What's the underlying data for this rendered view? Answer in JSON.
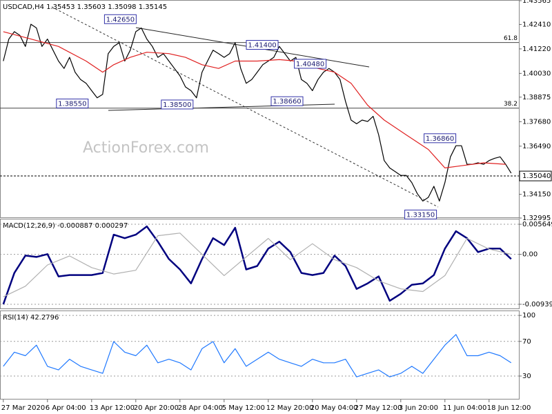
{
  "chart_data": [
    {
      "type": "line",
      "title": "USDCAD,H4 1.35453 1.35603 1.35098 1.35145",
      "watermark": "ActionForex.com",
      "xlim": [
        -0.6,
        93.4
      ],
      "xticks": [
        {
          "value": 0,
          "label": "27 Mar 2020"
        },
        {
          "value": 8,
          "label": "6 Apr 04:00"
        },
        {
          "value": 16,
          "label": "13 Apr 12:00"
        },
        {
          "value": 24,
          "label": "20 Apr 20:00"
        },
        {
          "value": 32,
          "label": "28 Apr 04:00"
        },
        {
          "value": 40,
          "label": "5 May 12:00"
        },
        {
          "value": 48,
          "label": "12 May 20:00"
        },
        {
          "value": 56,
          "label": "20 May 04:00"
        },
        {
          "value": 64,
          "label": "27 May 12:00"
        },
        {
          "value": 72,
          "label": "3 Jun 20:00"
        },
        {
          "value": 80,
          "label": "11 Jun 04:00"
        },
        {
          "value": 88,
          "label": "18 Jun 12:00"
        }
      ],
      "ylim": [
        1.32995,
        1.43565
      ],
      "yticks": [
        1.43565,
        {
          "value": 1.4241,
          "label": "1.42410"
        },
        {
          "value": 1.4122,
          "label": "1.41220"
        },
        {
          "value": 1.4003,
          "label": "1.40030"
        },
        1.38875,
        {
          "value": 1.3768,
          "label": "1.37680"
        },
        {
          "value": 1.3649,
          "label": "1.36490"
        },
        {
          "value": 1.3415,
          "label": "1.34150"
        },
        1.32995
      ],
      "series": [
        {
          "color": "#000000",
          "values": [
            1.4063,
            1.417,
            1.4206,
            1.4188,
            1.4134,
            1.4242,
            1.4224,
            1.4134,
            1.417,
            1.4116,
            1.4063,
            1.4027,
            1.4081,
            1.4009,
            1.3973,
            1.3955,
            1.3919,
            1.3884,
            1.3901,
            1.4099,
            1.4134,
            1.4152,
            1.4063,
            1.4116,
            1.4206,
            1.4224,
            1.417,
            1.4134,
            1.4081,
            1.4099,
            1.4063,
            1.4027,
            1.3991,
            1.3937,
            1.3919,
            1.3884,
            1.4009,
            1.4063,
            1.4116,
            1.4099,
            1.4081,
            1.4099,
            1.4152,
            1.4027,
            1.3955,
            1.3973,
            1.4009,
            1.4045,
            1.4063,
            1.4081,
            1.4134,
            1.4099,
            1.4063,
            1.4081,
            1.3973,
            1.3955,
            1.3919,
            1.3973,
            1.4009,
            1.4027,
            1.4009,
            1.3973,
            1.3866,
            1.3776,
            1.3758,
            1.3776,
            1.3769,
            1.3794,
            1.3704,
            1.3579,
            1.3543,
            1.3525,
            1.3507,
            1.3507,
            1.3472,
            1.3418,
            1.3382,
            1.34,
            1.3454,
            1.3382,
            1.3472,
            1.3597,
            1.3651,
            1.3651,
            1.3561,
            1.3561,
            1.3568,
            1.3561,
            1.3579,
            1.359,
            1.3597,
            1.3561,
            1.3518
          ]
        },
        {
          "color": "#e02020",
          "x": [
            0,
            5,
            10,
            15,
            18,
            20,
            23,
            26,
            30,
            33,
            36,
            39,
            42,
            46,
            50,
            53,
            57,
            60,
            63,
            66,
            69,
            73,
            77,
            80,
            83,
            87,
            91
          ],
          "values": [
            1.4206,
            1.417,
            1.4134,
            1.4063,
            1.4009,
            1.4045,
            1.4081,
            1.4106,
            1.4099,
            1.4081,
            1.4045,
            1.4027,
            1.4063,
            1.4063,
            1.407,
            1.4063,
            1.4027,
            1.4009,
            1.3955,
            1.3848,
            1.3776,
            1.3704,
            1.3633,
            1.3543,
            1.3554,
            1.3568,
            1.3561
          ]
        }
      ],
      "fib_levels": [
        {
          "value": 1.4153,
          "label": "61.8"
        },
        {
          "value": 1.3834,
          "label": "38.2"
        }
      ],
      "current_price": {
        "value": 1.3504,
        "label": "1.35040"
      },
      "annotations": [
        {
          "x": 21.2,
          "value": 1.4265,
          "label": "1.42650"
        },
        {
          "x": 46.9,
          "value": 1.414,
          "label": "1.41400"
        },
        {
          "x": 55.6,
          "value": 1.4048,
          "label": "1.40480"
        },
        {
          "x": 12.5,
          "value": 1.3855,
          "label": "1.38550"
        },
        {
          "x": 31.5,
          "value": 1.385,
          "label": "1.38500"
        },
        {
          "x": 51.4,
          "value": 1.3866,
          "label": "1.38660"
        },
        {
          "x": 79.1,
          "value": 1.3686,
          "label": "1.36860"
        },
        {
          "x": 75.6,
          "value": 1.3315,
          "label": "1.33150"
        }
      ]
    },
    {
      "type": "line",
      "title": "MACD(12,26,9) -0.000887 0.000297",
      "ylim": [
        -0.010311,
        0.006565
      ],
      "yticks": [
        0.005649,
        {
          "value": 0,
          "label": "0.00"
        },
        -0.009395
      ],
      "grid": true,
      "series": [
        {
          "color": "#00007f",
          "x": [
            0,
            2,
            4,
            6,
            8,
            10,
            12,
            14,
            16,
            18,
            20,
            22,
            24,
            26,
            28,
            30,
            32,
            34,
            36,
            38,
            40,
            42,
            44,
            46,
            48,
            50,
            52,
            54,
            56,
            58,
            60,
            62,
            64,
            66,
            68,
            70,
            72,
            74,
            76,
            78,
            80,
            82,
            84,
            86,
            88,
            90,
            92
          ],
          "values": [
            -0.00939,
            -0.00351,
            -0.00024,
            -0.0005,
            3e-05,
            -0.00416,
            -0.0039,
            -0.0039,
            -0.0039,
            -0.00351,
            0.00369,
            0.00303,
            0.00369,
            0.00526,
            0.00238,
            -0.00089,
            -0.00285,
            -0.00547,
            -0.00089,
            0.00303,
            0.00173,
            0.005,
            -0.00285,
            -0.0022,
            0.00107,
            0.00238,
            0.00042,
            -0.00351,
            -0.0039,
            -0.00351,
            -0.00024,
            -0.0022,
            -0.00651,
            -0.00547,
            -0.00416,
            -0.00874,
            -0.00743,
            -0.00573,
            -0.00547,
            -0.0039,
            0.00107,
            0.00434,
            0.00303,
            0.00042,
            0.00107,
            0.00107,
            -0.00089
          ]
        },
        {
          "color": "#b0b0b0",
          "x": [
            0,
            4,
            8,
            12,
            16,
            20,
            24,
            28,
            32,
            36,
            40,
            44,
            48,
            52,
            56,
            60,
            64,
            68,
            72,
            76,
            80,
            84,
            88,
            92
          ],
          "values": [
            -0.008,
            -0.006,
            -0.002,
            -0.0003,
            -0.0025,
            -0.0037,
            -0.003,
            0.0035,
            0.004,
            0,
            -0.004,
            -0.0005,
            0.003,
            -0.001,
            0.002,
            -0.001,
            -0.0025,
            -0.005,
            -0.0065,
            -0.007,
            -0.004,
            0.003,
            0.001,
            0
          ]
        }
      ]
    },
    {
      "type": "line",
      "title": "RSI(14) 42.2796",
      "ylim": [
        2.9,
        104.9
      ],
      "yticks": [
        100,
        70,
        30
      ],
      "grid": true,
      "series": [
        {
          "color": "#1e78ff",
          "x": [
            0,
            2,
            4,
            6,
            8,
            10,
            12,
            14,
            16,
            18,
            20,
            22,
            24,
            26,
            28,
            30,
            32,
            34,
            36,
            38,
            40,
            42,
            44,
            46,
            48,
            50,
            52,
            54,
            56,
            58,
            60,
            62,
            64,
            66,
            68,
            70,
            72,
            74,
            76,
            78,
            80,
            82,
            84,
            86,
            88,
            90,
            92
          ],
          "values": [
            41.2,
            57.6,
            53.5,
            65.7,
            41.2,
            37.1,
            49.4,
            41.2,
            37.1,
            33.1,
            69.8,
            57.6,
            53.5,
            65.7,
            45.3,
            49.4,
            45.3,
            37.1,
            61.6,
            69.8,
            45.3,
            61.6,
            41.2,
            49.4,
            57.6,
            49.4,
            45.3,
            41.2,
            49.4,
            45.3,
            45.3,
            49.4,
            29.0,
            33.1,
            37.1,
            29.0,
            33.1,
            41.2,
            33.1,
            49.4,
            65.7,
            78.0,
            53.5,
            53.5,
            57.6,
            53.5,
            45.3
          ]
        }
      ]
    }
  ]
}
